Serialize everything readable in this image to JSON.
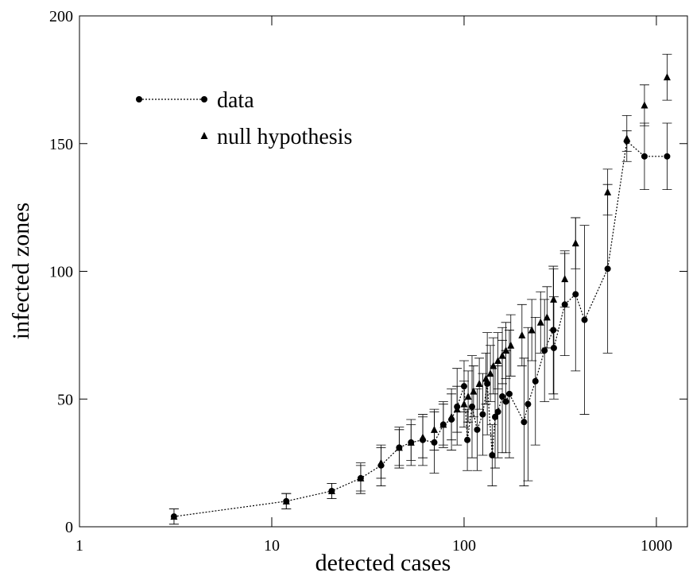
{
  "chart_data": {
    "type": "scatter",
    "xlabel": "detected cases",
    "ylabel": "infected zones",
    "xscale": "log",
    "xlim": [
      1,
      1450
    ],
    "xticks": [
      1,
      10,
      100,
      1000
    ],
    "ylim": [
      0,
      200
    ],
    "yticks": [
      0,
      50,
      100,
      150,
      200
    ],
    "legend": "upper left",
    "series": [
      {
        "name": "data",
        "color": "#000000",
        "marker": "circle",
        "linestyle": "dotted",
        "x": [
          3.1,
          11.9,
          20.5,
          29,
          37,
          46,
          53,
          61,
          70,
          78,
          86,
          92,
          100,
          104,
          110,
          117,
          125,
          132,
          140,
          145,
          150,
          158,
          165,
          172,
          205,
          215,
          235,
          262,
          291,
          293,
          334,
          380,
          423,
          558,
          702,
          867,
          1137
        ],
        "values": [
          4,
          10,
          14,
          19,
          24,
          31,
          33,
          34,
          33,
          40,
          42,
          47,
          55,
          34,
          47,
          38,
          44,
          56,
          28,
          43,
          45,
          51,
          49,
          52,
          41,
          48,
          57,
          69,
          77,
          70,
          87,
          91,
          81,
          101,
          151,
          145,
          145
        ],
        "errors": [
          3,
          3,
          3,
          6,
          8,
          8,
          9,
          10,
          12,
          9,
          12,
          15,
          10,
          12,
          20,
          16,
          16,
          20,
          12,
          20,
          18,
          22,
          20,
          25,
          25,
          30,
          25,
          20,
          25,
          20,
          20,
          30,
          37,
          33,
          4,
          13,
          13
        ]
      },
      {
        "name": "null hypothesis",
        "color": "#000000",
        "marker": "triangle",
        "x": [
          3.1,
          11.9,
          20.5,
          29,
          37,
          46,
          53,
          61,
          70,
          78,
          86,
          92,
          100,
          105,
          112,
          120,
          130,
          137,
          142,
          150,
          158,
          165,
          175,
          200,
          225,
          250,
          270,
          292,
          334,
          380,
          558,
          702,
          867,
          1137
        ],
        "values": [
          4,
          10,
          14,
          19,
          25,
          31,
          33,
          35,
          38,
          40,
          43,
          46,
          48,
          51,
          53,
          56,
          58,
          60,
          63,
          65,
          67,
          69,
          71,
          75,
          77,
          80,
          82,
          89,
          97,
          111,
          131,
          152,
          165,
          176
        ],
        "errors": [
          3,
          3,
          3,
          5,
          6,
          7,
          7,
          8,
          8,
          8,
          9,
          9,
          9,
          10,
          10,
          10,
          10,
          11,
          11,
          11,
          11,
          11,
          12,
          12,
          12,
          12,
          12,
          12,
          11,
          10,
          9,
          9,
          8,
          9
        ]
      }
    ]
  }
}
